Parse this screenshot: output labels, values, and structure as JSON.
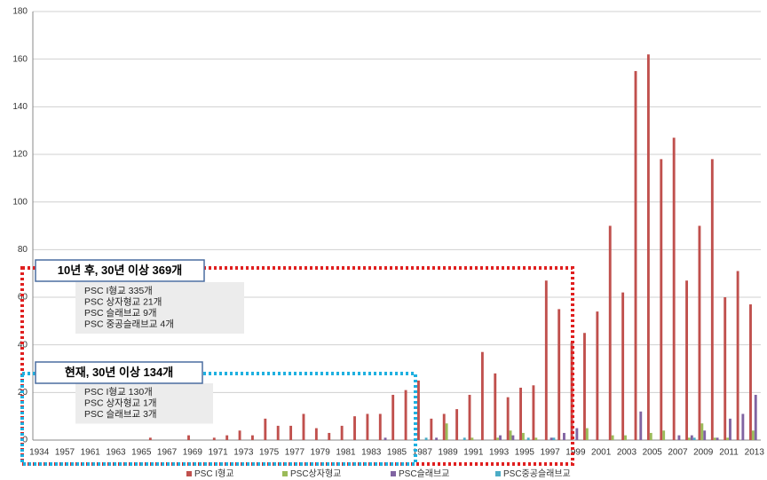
{
  "chart_data": {
    "type": "bar",
    "categories": [
      "1934",
      null,
      "1957",
      null,
      "1961",
      null,
      "1963",
      null,
      "1965",
      null,
      "1967",
      null,
      "1969",
      null,
      "1971",
      null,
      "1973",
      null,
      "1975",
      null,
      "1977",
      null,
      "1979",
      null,
      "1981",
      null,
      "1983",
      null,
      "1985",
      null,
      "1987",
      null,
      "1989",
      null,
      "1991",
      null,
      "1993",
      null,
      "1995",
      null,
      "1997",
      null,
      "1999",
      null,
      "2001",
      null,
      "2003",
      null,
      "2005",
      null,
      "2007",
      null,
      "2009",
      null,
      "2011",
      null,
      "2013"
    ],
    "series": [
      {
        "name": "PSC I형교",
        "color": "#c0504d",
        "values": [
          0,
          0,
          0,
          0,
          0,
          0,
          0,
          0,
          0,
          1,
          0,
          0,
          2,
          0,
          1,
          2,
          4,
          2,
          9,
          6,
          6,
          11,
          5,
          3,
          6,
          10,
          11,
          11,
          19,
          21,
          25,
          9,
          11,
          13,
          19,
          37,
          28,
          18,
          22,
          23,
          67,
          55,
          41,
          45,
          54,
          90,
          62,
          155,
          162,
          118,
          127,
          67,
          90,
          118,
          60,
          71,
          57
        ]
      },
      {
        "name": "PSC상자형교",
        "color": "#9bbb59",
        "values": [
          0,
          0,
          0,
          0,
          0,
          0,
          0,
          0,
          0,
          0,
          0,
          0,
          0,
          0,
          0,
          0,
          0,
          0,
          0,
          0,
          0,
          0,
          0,
          0,
          0,
          0,
          0,
          0,
          0,
          0,
          0,
          0,
          7,
          0,
          1,
          0,
          1,
          4,
          3,
          1,
          0,
          0,
          0,
          5,
          0,
          2,
          2,
          0,
          3,
          4,
          0,
          1,
          7,
          1,
          1,
          0,
          4
        ]
      },
      {
        "name": "PSC슬래브교",
        "color": "#8064a2",
        "values": [
          0,
          0,
          0,
          0,
          0,
          0,
          0,
          0,
          0,
          0,
          0,
          0,
          0,
          0,
          0,
          0,
          0,
          0,
          0,
          0,
          0,
          0,
          0,
          0,
          0,
          0,
          0,
          1,
          0,
          0,
          0,
          1,
          0,
          0,
          0,
          0,
          2,
          2,
          0,
          0,
          1,
          3,
          5,
          0,
          0,
          0,
          0,
          12,
          0,
          0,
          2,
          2,
          4,
          1,
          9,
          11,
          19
        ]
      },
      {
        "name": "PSC중공슬래브교",
        "color": "#4bacc6",
        "values": [
          0,
          0,
          0,
          0,
          0,
          0,
          0,
          0,
          0,
          0,
          0,
          0,
          0,
          0,
          0,
          0,
          0,
          0,
          0,
          0,
          0,
          0,
          0,
          0,
          0,
          0,
          0,
          0,
          0,
          0,
          1,
          0,
          0,
          1,
          0,
          0,
          0,
          0,
          1,
          0,
          1,
          0,
          0,
          0,
          0,
          0,
          0,
          0,
          0,
          0,
          0,
          1,
          0,
          0,
          0,
          0,
          0
        ]
      }
    ],
    "ylim": [
      0,
      180
    ],
    "yticks": [
      0,
      20,
      40,
      60,
      80,
      100,
      120,
      140,
      160,
      180
    ],
    "grid": true,
    "legend": "bottom",
    "annotations": [
      {
        "title": "10년 후, 30년 이상 369개",
        "color": "#e02020",
        "lines": [
          "PSC I형교 335개",
          "PSC 상자형교  21개",
          "PSC 슬래브교  9개",
          "PSC 중공슬래브교  4개"
        ]
      },
      {
        "title": "현재, 30년 이상 134개",
        "color": "#1fb0e0",
        "lines": [
          "PSC I형교 130개",
          "PSC 상자형교  1개",
          "PSC 슬래브교  3개"
        ]
      }
    ]
  }
}
